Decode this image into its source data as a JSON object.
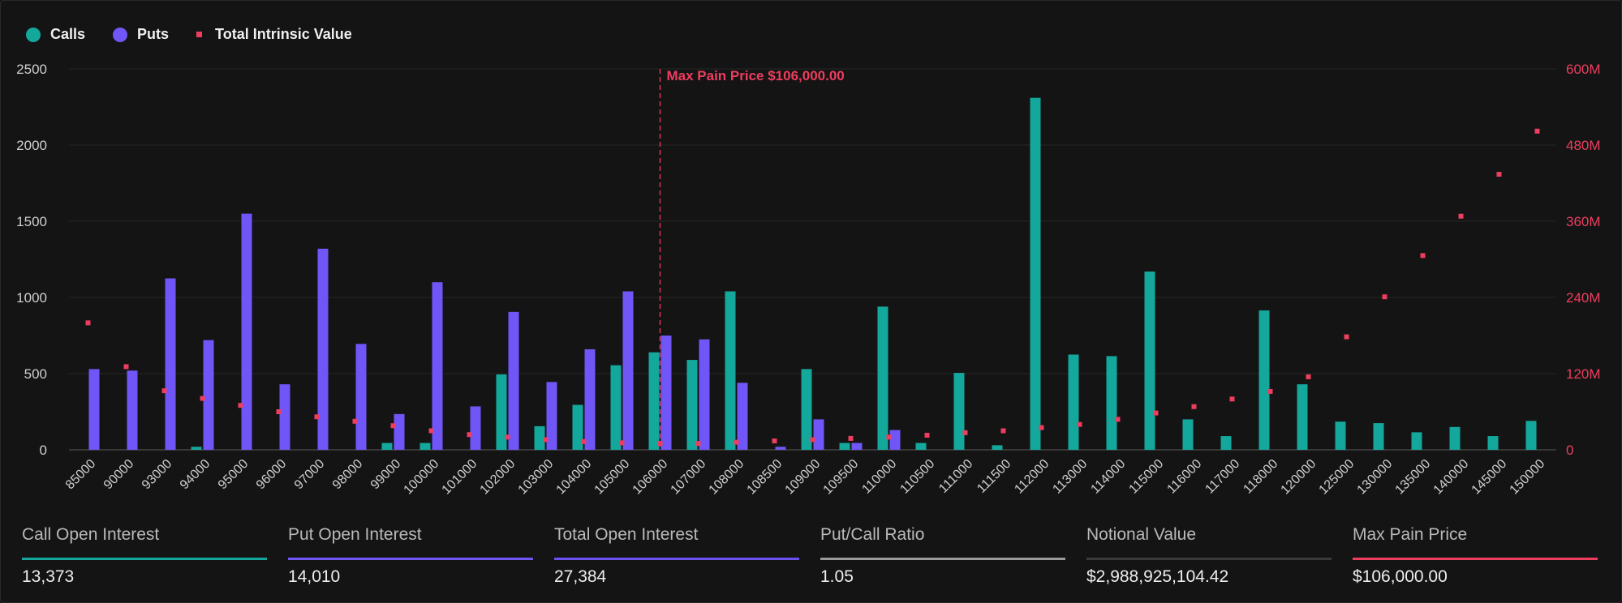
{
  "colors": {
    "calls": "#14a89c",
    "puts": "#7056f6",
    "intrinsic": "#ee3d5f",
    "max_pain": "#ee3d5f",
    "grid": "#262626",
    "axis_text": "#cfcfcf",
    "notional_bar": "#3a3a3a",
    "ratio_bar": "#9a9a9a"
  },
  "legend": {
    "calls": "Calls",
    "puts": "Puts",
    "intrinsic": "Total Intrinsic Value"
  },
  "chart_data": {
    "type": "bar",
    "categories": [
      "85000",
      "90000",
      "93000",
      "94000",
      "95000",
      "96000",
      "97000",
      "98000",
      "99000",
      "100000",
      "101000",
      "102000",
      "103000",
      "104000",
      "105000",
      "106000",
      "107000",
      "108000",
      "108500",
      "109000",
      "109500",
      "110000",
      "110500",
      "111000",
      "111500",
      "112000",
      "113000",
      "114000",
      "115000",
      "116000",
      "117000",
      "118000",
      "120000",
      "125000",
      "130000",
      "135000",
      "140000",
      "145000",
      "150000"
    ],
    "series": [
      {
        "name": "Calls",
        "axis": "left",
        "values": [
          0,
          0,
          0,
          20,
          0,
          0,
          0,
          0,
          45,
          45,
          0,
          495,
          155,
          295,
          555,
          640,
          590,
          1040,
          0,
          530,
          45,
          940,
          45,
          505,
          30,
          2310,
          625,
          615,
          1170,
          200,
          90,
          915,
          430,
          185,
          175,
          115,
          150,
          90,
          190
        ]
      },
      {
        "name": "Puts",
        "axis": "left",
        "values": [
          530,
          520,
          1125,
          720,
          1550,
          430,
          1320,
          695,
          235,
          1100,
          285,
          905,
          445,
          660,
          1040,
          750,
          725,
          440,
          20,
          200,
          45,
          130,
          0,
          0,
          0,
          0,
          0,
          0,
          0,
          0,
          0,
          0,
          0,
          0,
          0,
          0,
          0,
          0,
          0
        ]
      },
      {
        "name": "Total Intrinsic Value",
        "axis": "right",
        "type": "scatter",
        "values": [
          200000000,
          131000000,
          93000000,
          81000000,
          70000000,
          60000000,
          52000000,
          45000000,
          38000000,
          30000000,
          24000000,
          20000000,
          16000000,
          13000000,
          11000000,
          10000000,
          10000000,
          12000000,
          14000000,
          16000000,
          18000000,
          20000000,
          23000000,
          27000000,
          30000000,
          35000000,
          40000000,
          48000000,
          58000000,
          68000000,
          80000000,
          92000000,
          115000000,
          178000000,
          241000000,
          306000000,
          368000000,
          434000000,
          502000000
        ]
      }
    ],
    "ylim_left": [
      0,
      2500
    ],
    "yticks_left": [
      "0",
      "500",
      "1000",
      "1500",
      "2000",
      "2500"
    ],
    "ylim_right": [
      0,
      600000000
    ],
    "yticks_right": [
      "0",
      "120M",
      "240M",
      "360M",
      "480M",
      "600M"
    ],
    "max_pain": {
      "category": "106000",
      "label": "Max Pain Price $106,000.00"
    },
    "grid": true,
    "legend_position": "top-left"
  },
  "stats": [
    {
      "label": "Call Open Interest",
      "value": "13,373",
      "color": "#14a89c"
    },
    {
      "label": "Put Open Interest",
      "value": "14,010",
      "color": "#7056f6"
    },
    {
      "label": "Total Open Interest",
      "value": "27,384",
      "color": "#6a52f0"
    },
    {
      "label": "Put/Call Ratio",
      "value": "1.05",
      "color": "#9a9a9a"
    },
    {
      "label": "Notional Value",
      "value": "$2,988,925,104.42",
      "color": "#3a3a3a"
    },
    {
      "label": "Max Pain Price",
      "value": "$106,000.00",
      "color": "#ee3d5f"
    }
  ]
}
